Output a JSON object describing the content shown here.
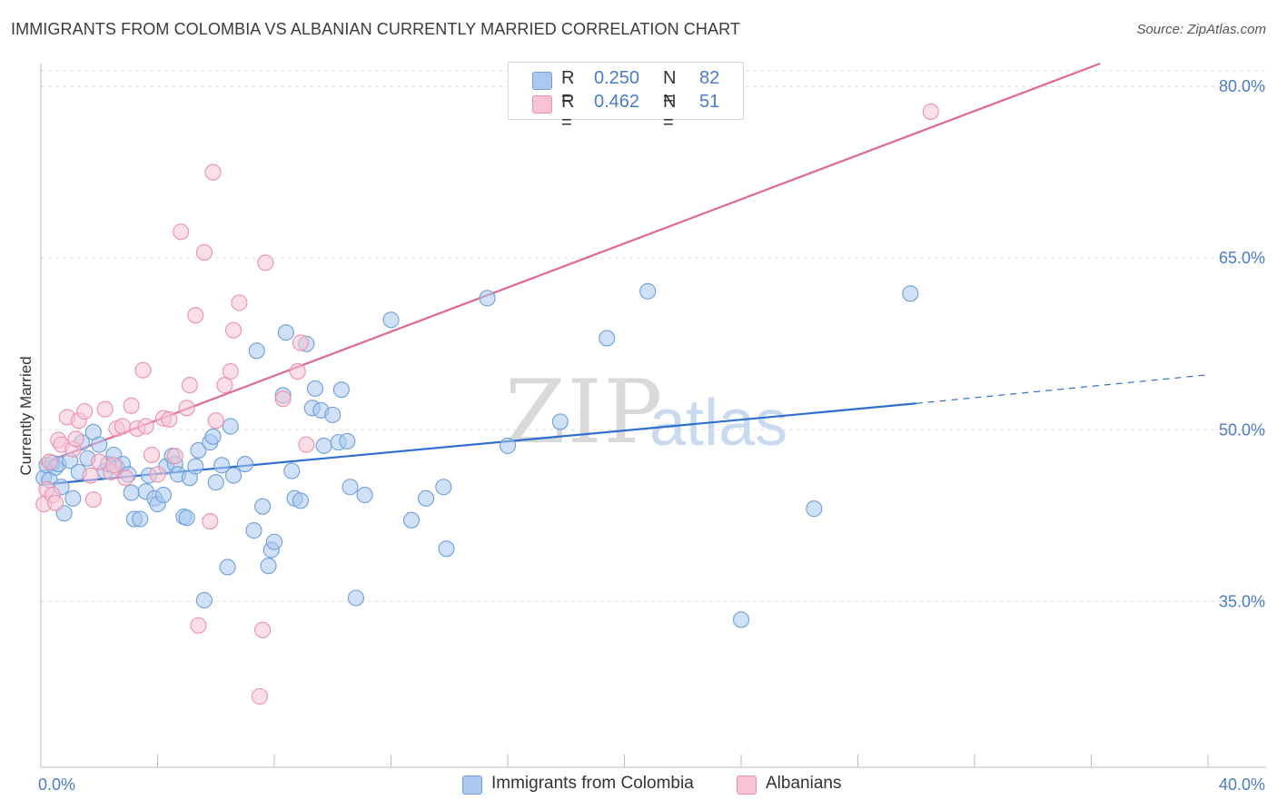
{
  "title": "IMMIGRANTS FROM COLOMBIA VS ALBANIAN CURRENTLY MARRIED CORRELATION CHART",
  "source": "Source: ZipAtlas.com",
  "watermark": {
    "zip": "ZIP",
    "atlas": "atlas"
  },
  "colors": {
    "blue_fill": "#aac8f0",
    "blue_stroke": "#6f9fd8",
    "blue_line": "#2f6fcf",
    "pink_fill": "#f8c4d4",
    "pink_stroke": "#ec8fae",
    "pink_line": "#e0678f",
    "tick_text": "#4a7cc7",
    "grid": "#dddddd"
  },
  "legend_top": {
    "rows": [
      {
        "r_label": "R =",
        "r_value": "0.250",
        "n_label": "N =",
        "n_value": "82"
      },
      {
        "r_label": "R =",
        "r_value": "0.462",
        "n_label": "N =",
        "n_value": "51"
      }
    ]
  },
  "legend_bottom": {
    "items": [
      {
        "label": "Immigrants from Colombia"
      },
      {
        "label": "Albanians"
      }
    ]
  },
  "chart_data": {
    "type": "scatter",
    "title": "IMMIGRANTS FROM COLOMBIA VS ALBANIAN CURRENTLY MARRIED CORRELATION CHART",
    "xlabel": "",
    "ylabel": "Currently Married",
    "xlim": [
      0,
      40
    ],
    "ylim": [
      20.5,
      82
    ],
    "x_tick_labels": [
      "0.0%",
      "40.0%"
    ],
    "y_ticks": [
      35,
      50,
      65,
      80
    ],
    "y_tick_labels": [
      "35.0%",
      "50.0%",
      "65.0%",
      "80.0%"
    ],
    "grid": true,
    "legend_position": "top-center",
    "series": [
      {
        "name": "Immigrants from Colombia",
        "color": "blue",
        "r": 0.25,
        "n": 82,
        "trend": {
          "x0": 0,
          "y0": 45.2,
          "x1": 30,
          "y1": 52.3,
          "dashed_to_x": 40,
          "dashed_to_y": 54.8
        },
        "points": [
          [
            0.1,
            45.8
          ],
          [
            0.2,
            46.9
          ],
          [
            0.3,
            45.6
          ],
          [
            0.4,
            47.1
          ],
          [
            0.5,
            46.7
          ],
          [
            0.6,
            47.0
          ],
          [
            0.7,
            45.0
          ],
          [
            0.8,
            42.7
          ],
          [
            1.0,
            47.3
          ],
          [
            1.1,
            44.0
          ],
          [
            1.3,
            46.3
          ],
          [
            1.4,
            48.9
          ],
          [
            1.6,
            47.5
          ],
          [
            1.8,
            49.8
          ],
          [
            2.0,
            48.7
          ],
          [
            2.2,
            46.4
          ],
          [
            2.3,
            47.0
          ],
          [
            2.5,
            47.8
          ],
          [
            2.6,
            46.7
          ],
          [
            2.8,
            47.0
          ],
          [
            3.0,
            46.1
          ],
          [
            3.1,
            44.5
          ],
          [
            3.2,
            42.2
          ],
          [
            3.4,
            42.2
          ],
          [
            3.6,
            44.6
          ],
          [
            3.7,
            46.0
          ],
          [
            3.9,
            44.0
          ],
          [
            4.0,
            43.5
          ],
          [
            4.2,
            44.3
          ],
          [
            4.3,
            46.8
          ],
          [
            4.5,
            47.7
          ],
          [
            4.6,
            47.0
          ],
          [
            4.7,
            46.1
          ],
          [
            4.9,
            42.4
          ],
          [
            5.0,
            42.3
          ],
          [
            5.1,
            45.8
          ],
          [
            5.3,
            46.8
          ],
          [
            5.4,
            48.2
          ],
          [
            5.6,
            35.1
          ],
          [
            5.8,
            48.9
          ],
          [
            5.9,
            49.4
          ],
          [
            6.0,
            45.4
          ],
          [
            6.2,
            46.9
          ],
          [
            6.4,
            38.0
          ],
          [
            6.5,
            50.3
          ],
          [
            6.6,
            46.0
          ],
          [
            7.0,
            47.0
          ],
          [
            7.3,
            41.2
          ],
          [
            7.4,
            56.9
          ],
          [
            7.6,
            43.3
          ],
          [
            7.8,
            38.1
          ],
          [
            7.9,
            39.5
          ],
          [
            8.0,
            40.2
          ],
          [
            8.3,
            53.0
          ],
          [
            8.4,
            58.5
          ],
          [
            8.6,
            46.4
          ],
          [
            8.7,
            44.0
          ],
          [
            8.9,
            43.8
          ],
          [
            9.1,
            57.5
          ],
          [
            9.3,
            51.9
          ],
          [
            9.4,
            53.6
          ],
          [
            9.6,
            51.7
          ],
          [
            9.7,
            48.6
          ],
          [
            10.0,
            51.3
          ],
          [
            10.2,
            48.9
          ],
          [
            10.3,
            53.5
          ],
          [
            10.5,
            49.0
          ],
          [
            10.6,
            45.0
          ],
          [
            10.8,
            35.3
          ],
          [
            11.1,
            44.3
          ],
          [
            12.0,
            59.6
          ],
          [
            12.7,
            42.1
          ],
          [
            13.2,
            44.0
          ],
          [
            13.8,
            45.0
          ],
          [
            13.9,
            39.6
          ],
          [
            15.3,
            61.5
          ],
          [
            16.0,
            48.6
          ],
          [
            17.8,
            50.7
          ],
          [
            19.4,
            58.0
          ],
          [
            20.8,
            62.1
          ],
          [
            24.0,
            33.4
          ],
          [
            26.5,
            43.1
          ],
          [
            29.8,
            61.9
          ]
        ]
      },
      {
        "name": "Albanians",
        "color": "pink",
        "r": 0.462,
        "n": 51,
        "trend": {
          "x0": 0,
          "y0": 47.0,
          "x1": 36.3,
          "y1": 82
        },
        "points": [
          [
            0.1,
            43.5
          ],
          [
            0.2,
            44.8
          ],
          [
            0.3,
            47.2
          ],
          [
            0.4,
            44.3
          ],
          [
            0.5,
            43.6
          ],
          [
            0.6,
            49.1
          ],
          [
            0.7,
            48.7
          ],
          [
            0.9,
            51.1
          ],
          [
            1.1,
            48.3
          ],
          [
            1.2,
            49.2
          ],
          [
            1.3,
            50.8
          ],
          [
            1.5,
            51.6
          ],
          [
            1.7,
            46.0
          ],
          [
            1.8,
            43.9
          ],
          [
            2.0,
            47.2
          ],
          [
            2.2,
            51.8
          ],
          [
            2.4,
            46.3
          ],
          [
            2.5,
            46.9
          ],
          [
            2.6,
            50.1
          ],
          [
            2.8,
            50.3
          ],
          [
            2.9,
            45.8
          ],
          [
            3.1,
            52.1
          ],
          [
            3.3,
            50.1
          ],
          [
            3.5,
            55.2
          ],
          [
            3.6,
            50.3
          ],
          [
            3.8,
            47.8
          ],
          [
            4.0,
            46.1
          ],
          [
            4.2,
            51.0
          ],
          [
            4.4,
            50.9
          ],
          [
            4.6,
            47.7
          ],
          [
            4.8,
            67.3
          ],
          [
            5.0,
            51.9
          ],
          [
            5.1,
            53.9
          ],
          [
            5.3,
            60.0
          ],
          [
            5.4,
            32.9
          ],
          [
            5.6,
            65.5
          ],
          [
            5.8,
            42.0
          ],
          [
            5.9,
            72.5
          ],
          [
            6.0,
            50.8
          ],
          [
            6.3,
            53.9
          ],
          [
            6.5,
            55.1
          ],
          [
            6.6,
            58.7
          ],
          [
            6.8,
            61.1
          ],
          [
            7.5,
            26.7
          ],
          [
            7.6,
            32.5
          ],
          [
            7.7,
            64.6
          ],
          [
            8.3,
            52.7
          ],
          [
            8.8,
            55.1
          ],
          [
            8.9,
            57.6
          ],
          [
            9.1,
            48.7
          ],
          [
            30.5,
            77.8
          ]
        ]
      }
    ]
  }
}
